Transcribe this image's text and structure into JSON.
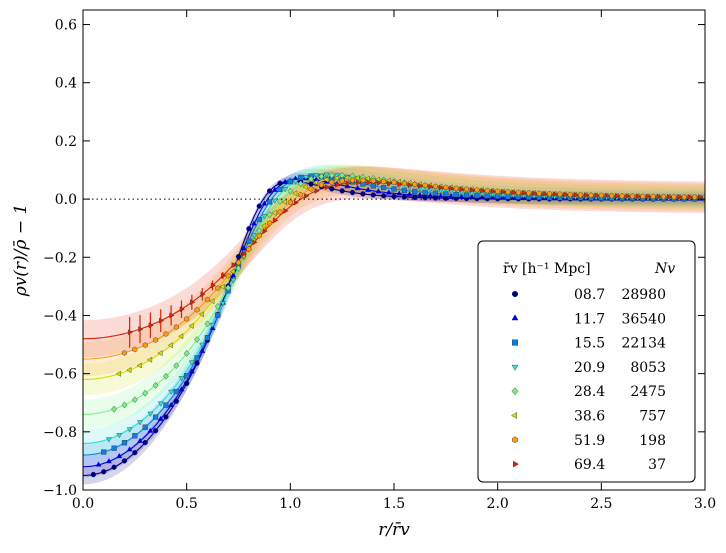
{
  "chart_data": {
    "type": "scatter",
    "xlabel": "r/r̄v",
    "ylabel": "ρv(r)/ρ̄ − 1",
    "xlim": [
      0.0,
      3.0
    ],
    "ylim": [
      -1.0,
      0.65
    ],
    "x_ticks": [
      "0.0",
      "0.5",
      "1.0",
      "1.5",
      "2.0",
      "2.5",
      "3.0"
    ],
    "y_ticks": [
      "−1.0",
      "−0.8",
      "−0.6",
      "−0.4",
      "−0.2",
      "0.0",
      "0.2",
      "0.4",
      "0.6"
    ],
    "reference_line": {
      "y": 0.0,
      "style": "dotted"
    },
    "legend": {
      "position": "bottom-right",
      "header_radius": "r̄v [h⁻¹ Mpc]",
      "header_count": "Nv"
    },
    "series": [
      {
        "radius": "08.7",
        "count": "28980",
        "color": "#00007f",
        "marker": "circle",
        "params": {
          "d0": -0.95,
          "rs": 0.87,
          "a": 2.0,
          "b": 9.8
        }
      },
      {
        "radius": "11.7",
        "count": "36540",
        "color": "#0000d8",
        "marker": "triangle-up",
        "params": {
          "d0": -0.92,
          "rs": 0.89,
          "a": 2.0,
          "b": 8.5
        }
      },
      {
        "radius": "15.5",
        "count": "22134",
        "color": "#0c7ee0",
        "marker": "square",
        "params": {
          "d0": -0.88,
          "rs": 0.91,
          "a": 2.0,
          "b": 7.5
        }
      },
      {
        "radius": "20.9",
        "count": "8053",
        "color": "#2ee0d8",
        "marker": "triangle-down",
        "params": {
          "d0": -0.84,
          "rs": 0.93,
          "a": 2.0,
          "b": 6.8
        }
      },
      {
        "radius": "28.4",
        "count": "2475",
        "color": "#76f080",
        "marker": "diamond",
        "params": {
          "d0": -0.74,
          "rs": 0.96,
          "a": 2.0,
          "b": 6.3
        }
      },
      {
        "radius": "38.6",
        "count": "757",
        "color": "#d0e000",
        "marker": "triangle-left",
        "params": {
          "d0": -0.62,
          "rs": 0.99,
          "a": 2.0,
          "b": 6.0
        }
      },
      {
        "radius": "51.9",
        "count": "198",
        "color": "#ff9a10",
        "marker": "hexagon",
        "params": {
          "d0": -0.55,
          "rs": 1.02,
          "a": 2.0,
          "b": 6.0
        }
      },
      {
        "radius": "69.4",
        "count": "37",
        "color": "#e02000",
        "marker": "triangle-right",
        "params": {
          "d0": -0.48,
          "rs": 1.05,
          "a": 2.0,
          "b": 6.0
        }
      }
    ]
  }
}
